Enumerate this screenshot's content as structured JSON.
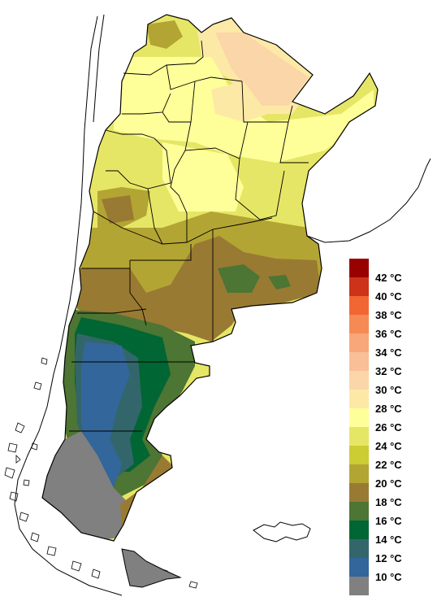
{
  "legend": {
    "items": [
      {
        "label": "42 °C",
        "color": "#990000"
      },
      {
        "label": "40 °C",
        "color": "#cc3319"
      },
      {
        "label": "38 °C",
        "color": "#f26633"
      },
      {
        "label": "36 °C",
        "color": "#f58a55"
      },
      {
        "label": "34 °C",
        "color": "#f7a77a"
      },
      {
        "label": "32 °C",
        "color": "#f9bf96"
      },
      {
        "label": "30 °C",
        "color": "#fbd6a8"
      },
      {
        "label": "28 °C",
        "color": "#fde9a6"
      },
      {
        "label": "26 °C",
        "color": "#ffff99"
      },
      {
        "label": "24 °C",
        "color": "#e6e666"
      },
      {
        "label": "22 °C",
        "color": "#cccc33"
      },
      {
        "label": "20 °C",
        "color": "#b3a533"
      },
      {
        "label": "18 °C",
        "color": "#997a33"
      },
      {
        "label": "16 °C",
        "color": "#4d7533"
      },
      {
        "label": "14 °C",
        "color": "#006633"
      },
      {
        "label": "12 °C",
        "color": "#33666b"
      },
      {
        "label": "10 °C",
        "color": "#33669a"
      },
      {
        "label": "",
        "color": "#808080"
      }
    ]
  }
}
